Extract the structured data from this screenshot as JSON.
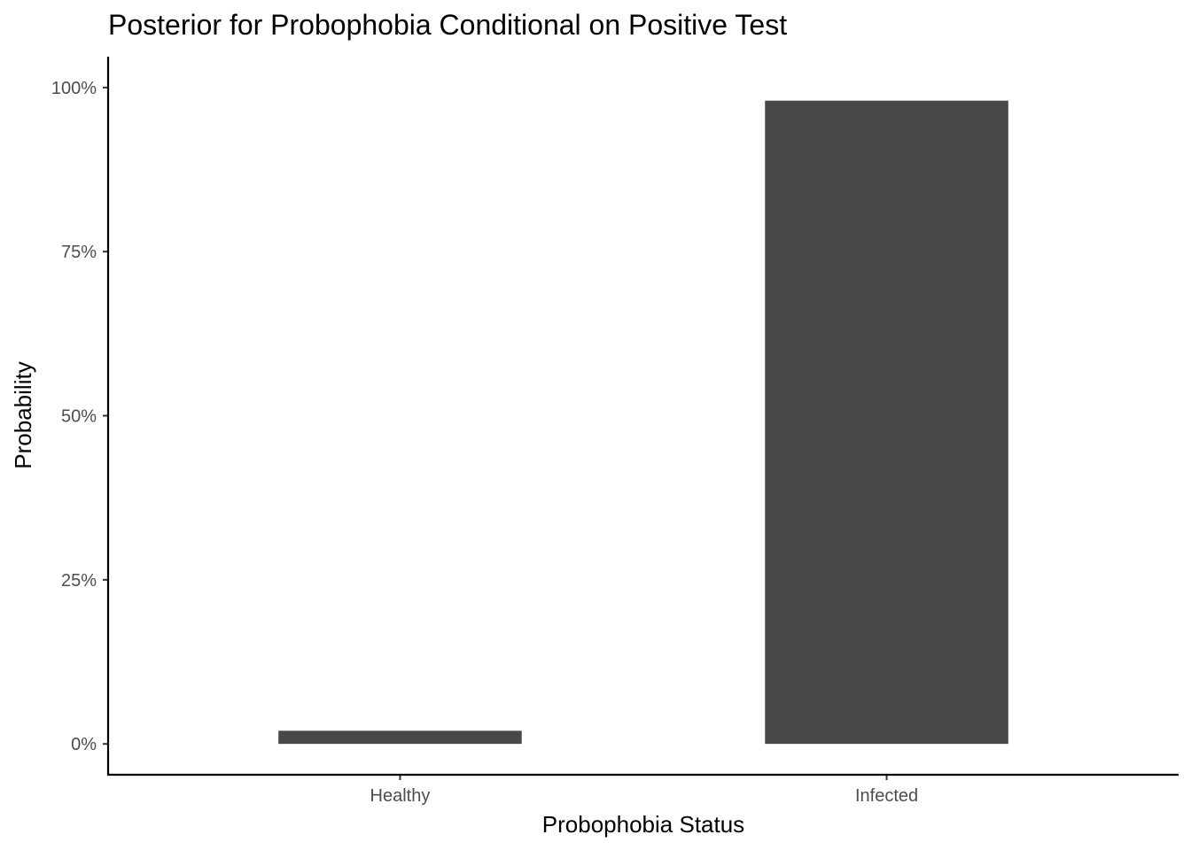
{
  "chart_data": {
    "type": "bar",
    "title": "Posterior for Probophobia Conditional on Positive Test",
    "xlabel": "Probophobia Status",
    "ylabel": "Probability",
    "categories": [
      "Healthy",
      "Infected"
    ],
    "values": [
      0.02,
      0.98
    ],
    "ylim": [
      -0.047,
      1.047
    ],
    "yticks": [
      0,
      0.25,
      0.5,
      0.75,
      1.0
    ],
    "ytick_labels": [
      "0%",
      "25%",
      "50%",
      "75%",
      "100%"
    ],
    "bar_color": "#484848",
    "grid": false,
    "legend": "none"
  }
}
